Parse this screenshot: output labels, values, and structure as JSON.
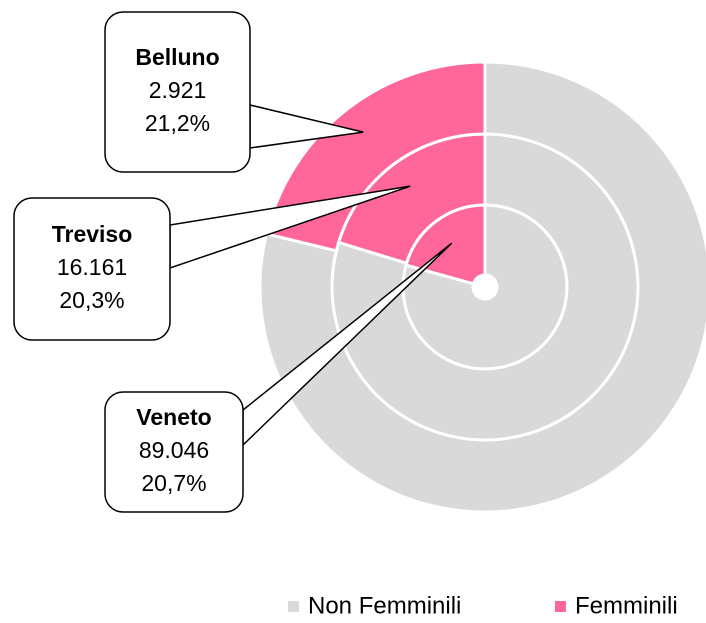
{
  "chart_data": {
    "type": "nested-donut",
    "categories": [
      "Veneto",
      "Treviso",
      "Belluno"
    ],
    "series": [
      {
        "name": "Non Femminili",
        "color": "#d9d9d9",
        "values": [
          79.3,
          79.7,
          78.8
        ]
      },
      {
        "name": "Femminili",
        "color": "#ff6699",
        "values": [
          20.7,
          20.3,
          21.2
        ],
        "value_labels": [
          "20,7%",
          "20,3%",
          "21,2%"
        ],
        "counts": [
          89046,
          16161,
          2921
        ],
        "count_labels": [
          "89.046",
          "16.161",
          "2.921"
        ]
      }
    ],
    "legend": "bottom-right"
  }
}
